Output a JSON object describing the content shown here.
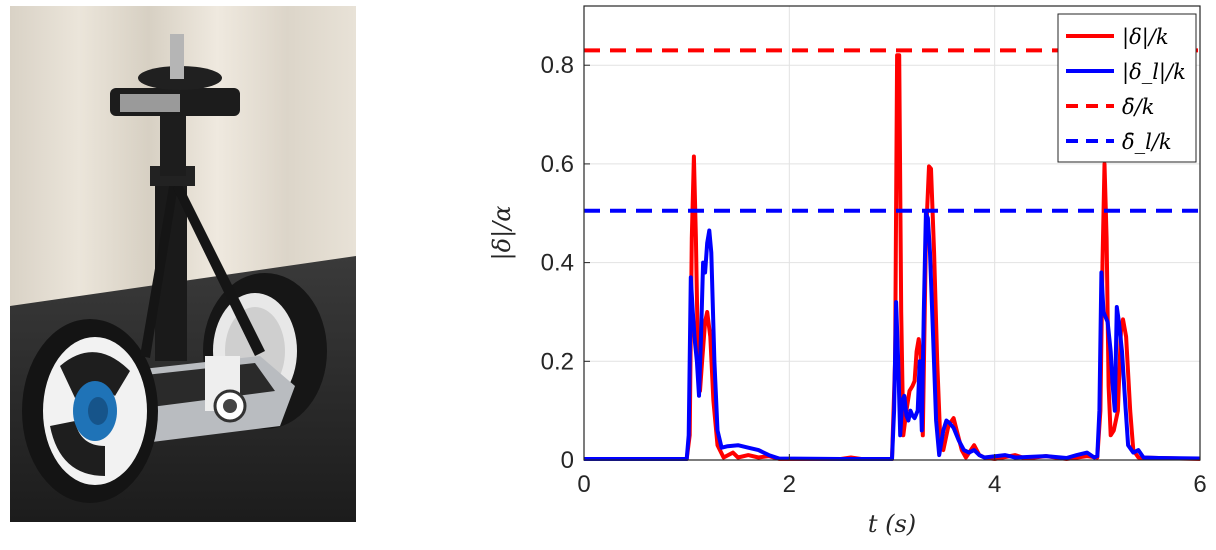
{
  "photo": {
    "description_icon": "segway-robot-photo"
  },
  "chart_data": {
    "type": "line",
    "xlabel": "t (s)",
    "ylabel": "|δ|/α",
    "xlim": [
      0,
      6
    ],
    "ylim": [
      0,
      0.92
    ],
    "xticks": [
      "0",
      "2",
      "4",
      "6"
    ],
    "yticks": [
      "0",
      "0.2",
      "0.4",
      "0.6",
      "0.8"
    ],
    "grid": true,
    "legend_position": "top-right",
    "series": [
      {
        "name": "|δ|/k",
        "color": "#ff0000",
        "style": "solid",
        "points": [
          [
            0,
            0.002
          ],
          [
            1.0,
            0.002
          ],
          [
            1.03,
            0.05
          ],
          [
            1.05,
            0.45
          ],
          [
            1.07,
            0.615
          ],
          [
            1.09,
            0.45
          ],
          [
            1.11,
            0.2
          ],
          [
            1.13,
            0.14
          ],
          [
            1.15,
            0.2
          ],
          [
            1.18,
            0.28
          ],
          [
            1.2,
            0.3
          ],
          [
            1.23,
            0.25
          ],
          [
            1.26,
            0.12
          ],
          [
            1.3,
            0.03
          ],
          [
            1.36,
            0.005
          ],
          [
            1.45,
            0.015
          ],
          [
            1.5,
            0.005
          ],
          [
            1.6,
            0.01
          ],
          [
            1.7,
            0.005
          ],
          [
            1.8,
            0.008
          ],
          [
            1.9,
            0.002
          ],
          [
            2.5,
            0.002
          ],
          [
            2.6,
            0.005
          ],
          [
            2.7,
            0.002
          ],
          [
            3.0,
            0.002
          ],
          [
            3.03,
            0.2
          ],
          [
            3.05,
            0.82
          ],
          [
            3.07,
            0.82
          ],
          [
            3.09,
            0.3
          ],
          [
            3.11,
            0.05
          ],
          [
            3.14,
            0.1
          ],
          [
            3.17,
            0.14
          ],
          [
            3.2,
            0.15
          ],
          [
            3.22,
            0.16
          ],
          [
            3.24,
            0.22
          ],
          [
            3.26,
            0.245
          ],
          [
            3.28,
            0.21
          ],
          [
            3.3,
            0.05
          ],
          [
            3.33,
            0.45
          ],
          [
            3.36,
            0.595
          ],
          [
            3.38,
            0.59
          ],
          [
            3.41,
            0.42
          ],
          [
            3.44,
            0.2
          ],
          [
            3.47,
            0.04
          ],
          [
            3.5,
            0.02
          ],
          [
            3.55,
            0.07
          ],
          [
            3.6,
            0.085
          ],
          [
            3.63,
            0.06
          ],
          [
            3.68,
            0.02
          ],
          [
            3.72,
            0.005
          ],
          [
            3.8,
            0.03
          ],
          [
            3.85,
            0.01
          ],
          [
            3.9,
            0.005
          ],
          [
            4.0,
            0.002
          ],
          [
            4.2,
            0.01
          ],
          [
            4.3,
            0.003
          ],
          [
            4.5,
            0.008
          ],
          [
            4.7,
            0.002
          ],
          [
            4.9,
            0.008
          ],
          [
            5.0,
            0.005
          ],
          [
            5.03,
            0.1
          ],
          [
            5.05,
            0.4
          ],
          [
            5.07,
            0.6
          ],
          [
            5.09,
            0.45
          ],
          [
            5.11,
            0.15
          ],
          [
            5.13,
            0.05
          ],
          [
            5.16,
            0.06
          ],
          [
            5.2,
            0.1
          ],
          [
            5.23,
            0.26
          ],
          [
            5.25,
            0.285
          ],
          [
            5.28,
            0.25
          ],
          [
            5.32,
            0.1
          ],
          [
            5.35,
            0.02
          ],
          [
            5.4,
            0.005
          ],
          [
            6.0,
            0.002
          ]
        ]
      },
      {
        "name": "|δ_l|/k",
        "color": "#0000ff",
        "style": "solid",
        "points": [
          [
            0,
            0.002
          ],
          [
            1.0,
            0.002
          ],
          [
            1.02,
            0.05
          ],
          [
            1.04,
            0.37
          ],
          [
            1.06,
            0.3
          ],
          [
            1.08,
            0.24
          ],
          [
            1.1,
            0.2
          ],
          [
            1.12,
            0.13
          ],
          [
            1.14,
            0.25
          ],
          [
            1.16,
            0.4
          ],
          [
            1.18,
            0.38
          ],
          [
            1.2,
            0.44
          ],
          [
            1.22,
            0.465
          ],
          [
            1.24,
            0.42
          ],
          [
            1.27,
            0.2
          ],
          [
            1.3,
            0.06
          ],
          [
            1.34,
            0.025
          ],
          [
            1.4,
            0.028
          ],
          [
            1.5,
            0.03
          ],
          [
            1.6,
            0.025
          ],
          [
            1.7,
            0.02
          ],
          [
            1.8,
            0.01
          ],
          [
            1.9,
            0.003
          ],
          [
            2.5,
            0.002
          ],
          [
            3.0,
            0.002
          ],
          [
            3.02,
            0.1
          ],
          [
            3.04,
            0.32
          ],
          [
            3.06,
            0.2
          ],
          [
            3.08,
            0.05
          ],
          [
            3.1,
            0.12
          ],
          [
            3.12,
            0.13
          ],
          [
            3.14,
            0.09
          ],
          [
            3.16,
            0.08
          ],
          [
            3.18,
            0.1
          ],
          [
            3.2,
            0.09
          ],
          [
            3.22,
            0.085
          ],
          [
            3.25,
            0.1
          ],
          [
            3.27,
            0.2
          ],
          [
            3.29,
            0.06
          ],
          [
            3.31,
            0.3
          ],
          [
            3.33,
            0.5
          ],
          [
            3.35,
            0.49
          ],
          [
            3.37,
            0.42
          ],
          [
            3.4,
            0.25
          ],
          [
            3.43,
            0.08
          ],
          [
            3.46,
            0.01
          ],
          [
            3.5,
            0.06
          ],
          [
            3.53,
            0.08
          ],
          [
            3.56,
            0.075
          ],
          [
            3.6,
            0.065
          ],
          [
            3.65,
            0.04
          ],
          [
            3.7,
            0.02
          ],
          [
            3.75,
            0.015
          ],
          [
            3.8,
            0.02
          ],
          [
            3.85,
            0.01
          ],
          [
            3.9,
            0.005
          ],
          [
            4.1,
            0.01
          ],
          [
            4.2,
            0.005
          ],
          [
            4.5,
            0.008
          ],
          [
            4.7,
            0.004
          ],
          [
            4.8,
            0.01
          ],
          [
            4.9,
            0.015
          ],
          [
            4.97,
            0.005
          ],
          [
            5.0,
            0.008
          ],
          [
            5.02,
            0.1
          ],
          [
            5.04,
            0.38
          ],
          [
            5.06,
            0.3
          ],
          [
            5.08,
            0.29
          ],
          [
            5.1,
            0.28
          ],
          [
            5.13,
            0.22
          ],
          [
            5.15,
            0.15
          ],
          [
            5.17,
            0.1
          ],
          [
            5.19,
            0.31
          ],
          [
            5.21,
            0.28
          ],
          [
            5.24,
            0.22
          ],
          [
            5.27,
            0.12
          ],
          [
            5.3,
            0.03
          ],
          [
            5.35,
            0.015
          ],
          [
            5.4,
            0.02
          ],
          [
            5.45,
            0.005
          ],
          [
            5.6,
            0.004
          ],
          [
            6.0,
            0.003
          ]
        ]
      },
      {
        "name": "δ̄/k",
        "color": "#ff0000",
        "style": "dashed",
        "points": [
          [
            0,
            0.83
          ],
          [
            6,
            0.83
          ]
        ]
      },
      {
        "name": "δ̄_l/k",
        "color": "#0000ff",
        "style": "dashed",
        "points": [
          [
            0,
            0.505
          ],
          [
            6,
            0.505
          ]
        ]
      }
    ]
  },
  "legend": {
    "entries": [
      "|δ|/k",
      "|δ_l|/k",
      "δ̄/k",
      "δ̄_l/k"
    ]
  }
}
